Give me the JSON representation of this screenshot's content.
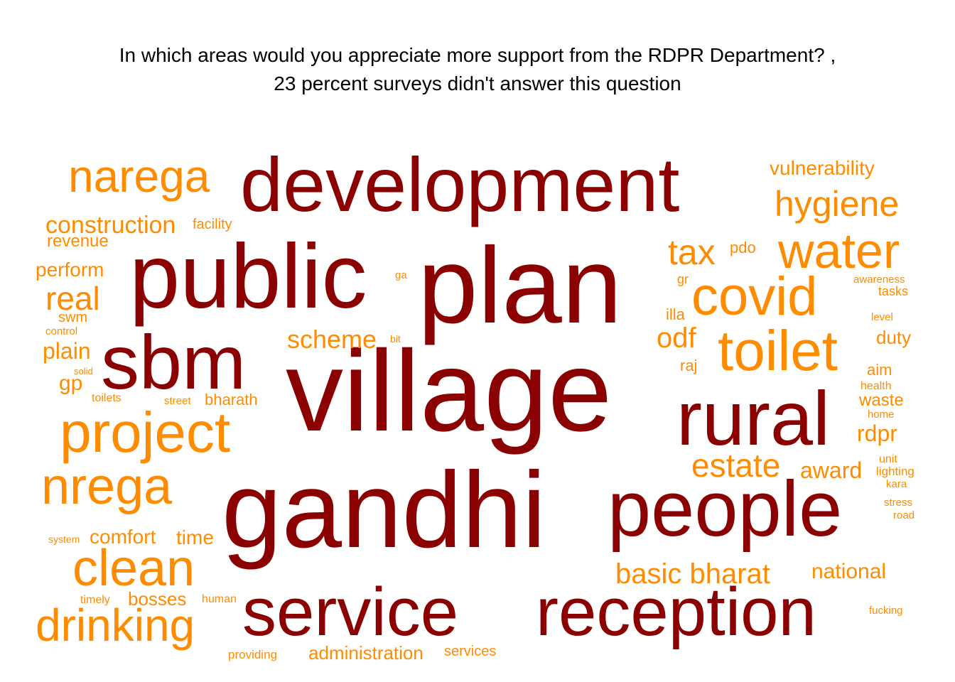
{
  "title": {
    "line1": "In which areas would you appreciate more support from the RDPR Department? ,",
    "line2": "23 percent surveys didn't answer this question"
  },
  "colors": {
    "dark": "#8b0000",
    "light": "#ff8c00"
  },
  "words": [
    "village",
    "plan",
    "gandhi",
    "development",
    "public",
    "sbm",
    "service",
    "reception",
    "people",
    "rural",
    "project",
    "nrega",
    "narega",
    "clean",
    "drinking",
    "covid",
    "toilet",
    "water",
    "hygiene",
    "tax",
    "estate",
    "real",
    "basic bharat",
    "national",
    "award",
    "odf",
    "rdpr",
    "scheme",
    "construction",
    "vulnerability",
    "revenue",
    "perform",
    "plain",
    "comfort",
    "time",
    "bosses",
    "administration",
    "duty",
    "waste",
    "facility",
    "pdo",
    "illa",
    "gr",
    "raj",
    "awareness",
    "tasks",
    "level",
    "aim",
    "health",
    "home",
    "unit",
    "lighting",
    "kara",
    "stress",
    "road",
    "swm",
    "control",
    "gp",
    "solid",
    "toilets",
    "street",
    "bharath",
    "ga",
    "bit",
    "system",
    "timely",
    "human",
    "providing",
    "services",
    "fucking"
  ]
}
